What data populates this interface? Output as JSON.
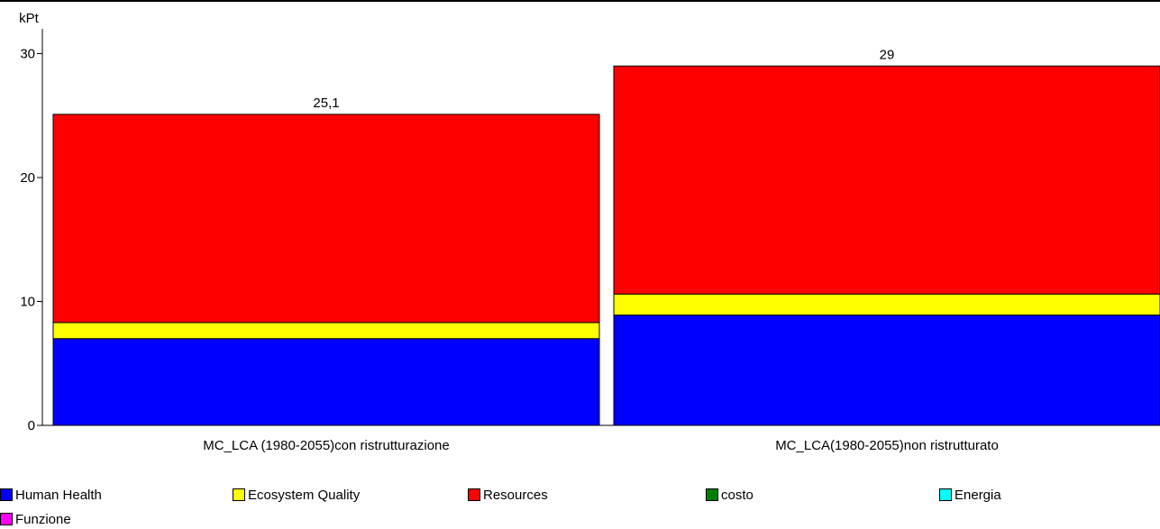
{
  "chart_data": {
    "type": "bar",
    "stacked": true,
    "ylabel": "kPt",
    "ylim": [
      0,
      32
    ],
    "yticks": [
      0,
      10,
      20,
      30
    ],
    "categories": [
      "MC_LCA (1980-2055)con ristrutturazione",
      "MC_LCA(1980-2055)non ristrutturato"
    ],
    "totals": [
      "25,1",
      "29"
    ],
    "series": [
      {
        "name": "Human Health",
        "color": "#0000ff",
        "values": [
          7.0,
          8.9
        ]
      },
      {
        "name": "Ecosystem Quality",
        "color": "#ffff00",
        "values": [
          1.3,
          1.7
        ]
      },
      {
        "name": "Resources",
        "color": "#ff0000",
        "values": [
          16.8,
          18.4
        ]
      },
      {
        "name": "costo",
        "color": "#008000",
        "values": [
          0,
          0
        ]
      },
      {
        "name": "Energia",
        "color": "#00ffff",
        "values": [
          0,
          0
        ]
      },
      {
        "name": "Funzione",
        "color": "#ff00ff",
        "values": [
          0,
          0
        ]
      }
    ],
    "grid": false,
    "legend_position": "bottom"
  }
}
